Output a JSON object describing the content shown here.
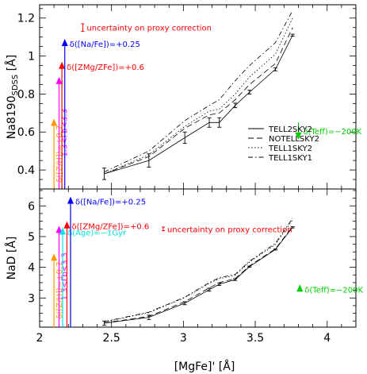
{
  "figure": {
    "xlabel": "[MgFe]' [Å]",
    "legend": [
      {
        "label": "TELL2SKY2",
        "dash": ""
      },
      {
        "label": "NOTELLSKY2",
        "dash": "7,4"
      },
      {
        "label": "TELL1SKY2",
        "dash": "1.5,2.5"
      },
      {
        "label": "TELL1SKY1",
        "dash": "6,3,1.5,3"
      }
    ]
  },
  "chart_data": [
    {
      "type": "line",
      "ylabel_main": "Na8190",
      "ylabel_sub": "SDSS",
      "ylabel_unit": "[Å]",
      "xlim": [
        2.0,
        4.2
      ],
      "ylim": [
        0.3,
        1.27
      ],
      "xticks": [
        2,
        2.5,
        3,
        3.5,
        4
      ],
      "yticks": [
        0.4,
        0.6,
        0.8,
        1.0,
        1.2
      ],
      "yticklabels": [
        "0.4",
        "0.6",
        "0.8",
        "1",
        "1.2"
      ],
      "series": [
        {
          "name": "TELL2SKY2",
          "x": [
            2.45,
            2.76,
            3.01,
            3.18,
            3.25,
            3.36,
            3.46,
            3.64,
            3.76
          ],
          "y": [
            0.38,
            0.45,
            0.57,
            0.65,
            0.65,
            0.74,
            0.81,
            0.93,
            1.11
          ]
        },
        {
          "name": "NOTELLSKY2",
          "x": [
            2.45,
            2.76,
            3.01,
            3.18,
            3.25,
            3.36,
            3.46,
            3.64,
            3.76
          ],
          "y": [
            0.38,
            0.47,
            0.62,
            0.69,
            0.7,
            0.77,
            0.85,
            0.96,
            1.15
          ]
        },
        {
          "name": "TELL1SKY2",
          "x": [
            2.45,
            2.76,
            3.01,
            3.18,
            3.25,
            3.36,
            3.46,
            3.64,
            3.76
          ],
          "y": [
            0.38,
            0.48,
            0.63,
            0.71,
            0.72,
            0.8,
            0.89,
            1.01,
            1.2
          ]
        },
        {
          "name": "TELL1SKY1",
          "x": [
            2.45,
            2.76,
            3.01,
            3.18,
            3.25,
            3.36,
            3.46,
            3.64,
            3.76
          ],
          "y": [
            0.39,
            0.5,
            0.66,
            0.74,
            0.77,
            0.87,
            0.95,
            1.07,
            1.24
          ]
        }
      ],
      "error_bars": [
        {
          "x": 2.45,
          "y": 0.38,
          "err": 0.03
        },
        {
          "x": 2.76,
          "y": 0.45,
          "err": 0.035
        },
        {
          "x": 3.01,
          "y": 0.57,
          "err": 0.03
        },
        {
          "x": 3.18,
          "y": 0.65,
          "err": 0.025
        },
        {
          "x": 3.25,
          "y": 0.65,
          "err": 0.025
        },
        {
          "x": 3.36,
          "y": 0.74,
          "err": 0.012
        },
        {
          "x": 3.46,
          "y": 0.81,
          "err": 0.01
        },
        {
          "x": 3.64,
          "y": 0.93,
          "err": 0.008
        },
        {
          "x": 3.76,
          "y": 1.11,
          "err": 0.005
        }
      ],
      "uncertainty": {
        "label": "uncertainty on proxy correction",
        "x": 2.3,
        "y": 1.15,
        "err": 0.02,
        "color": "#ff0000"
      },
      "arrows": [
        {
          "label": "δ([Z/H])=+0.7",
          "x": 2.1,
          "y0": 0.3,
          "y1": 0.67,
          "color": "#ff9900",
          "orient": "vertical"
        },
        {
          "label": "1.3<Γb<3.3",
          "x": 2.135,
          "y0": 0.3,
          "y1": 0.89,
          "color": "#ff00ff",
          "orient": "vertical"
        },
        {
          "label": "δ([ZMg/ZFe])=+0.6",
          "x": 2.155,
          "y0": 0.3,
          "y1": 0.97,
          "color": "#ff0000",
          "orient": "horizontal-label"
        },
        {
          "label": "δ([Na/Fe])=+0.25",
          "x": 2.175,
          "y0": 0.3,
          "y1": 1.09,
          "color": "#0000ff",
          "orient": "horizontal-label"
        },
        {
          "label": "δ(Teff)=−200K",
          "x": 3.8,
          "y0": 0.65,
          "y1": 0.56,
          "color": "#00cc00",
          "orient": "horizontal-label"
        }
      ]
    },
    {
      "type": "line",
      "ylabel_main": "NaD",
      "ylabel_sub": "",
      "ylabel_unit": "[Å]",
      "xlim": [
        2.0,
        4.2
      ],
      "ylim": [
        2.05,
        6.55
      ],
      "xticks": [
        2,
        2.5,
        3,
        3.5,
        4
      ],
      "xticklabels": [
        "2",
        "2.5",
        "3",
        "3.5",
        "4"
      ],
      "yticks": [
        3,
        4,
        5,
        6
      ],
      "yticklabels": [
        "3",
        "4",
        "5",
        "6"
      ],
      "series": [
        {
          "name": "TELL2SKY2",
          "x": [
            2.45,
            2.76,
            3.01,
            3.18,
            3.25,
            3.36,
            3.46,
            3.64,
            3.76
          ],
          "y": [
            2.18,
            2.37,
            2.83,
            3.27,
            3.45,
            3.6,
            4.02,
            4.58,
            5.3
          ]
        },
        {
          "name": "NOTELLSKY2",
          "x": [
            2.45,
            2.76,
            3.01,
            3.18,
            3.25,
            3.36,
            3.46,
            3.64,
            3.76
          ],
          "y": [
            2.19,
            2.4,
            2.88,
            3.33,
            3.5,
            3.63,
            4.05,
            4.6,
            5.33
          ]
        },
        {
          "name": "TELL1SKY2",
          "x": [
            2.45,
            2.76,
            3.01,
            3.18,
            3.25,
            3.36,
            3.46,
            3.64,
            3.76
          ],
          "y": [
            2.22,
            2.52,
            3.01,
            3.47,
            3.63,
            3.74,
            4.17,
            4.74,
            5.55
          ]
        },
        {
          "name": "TELL1SKY1",
          "x": [
            2.45,
            2.76,
            3.01,
            3.18,
            3.25,
            3.36,
            3.46,
            3.64,
            3.76
          ],
          "y": [
            2.23,
            2.54,
            3.03,
            3.5,
            3.66,
            3.77,
            4.2,
            4.78,
            5.6
          ]
        }
      ],
      "error_bars": [
        {
          "x": 2.45,
          "y": 2.18,
          "err": 0.07
        },
        {
          "x": 2.76,
          "y": 2.37,
          "err": 0.07
        },
        {
          "x": 3.01,
          "y": 2.83,
          "err": 0.05
        },
        {
          "x": 3.18,
          "y": 3.27,
          "err": 0.05
        },
        {
          "x": 3.25,
          "y": 3.45,
          "err": 0.04
        },
        {
          "x": 3.36,
          "y": 3.6,
          "err": 0.03
        },
        {
          "x": 3.46,
          "y": 4.02,
          "err": 0.02
        },
        {
          "x": 3.64,
          "y": 4.58,
          "err": 0.02
        },
        {
          "x": 3.76,
          "y": 5.3,
          "err": 0.02
        }
      ],
      "uncertainty": {
        "label": "uncertainty on proxy correction",
        "x": 2.86,
        "y": 5.25,
        "err": 0.06,
        "color": "#ff0000"
      },
      "arrows": [
        {
          "label": "δ([Z/H])=+0.7",
          "x": 2.1,
          "y0": 2.05,
          "y1": 4.45,
          "color": "#ff9900",
          "orient": "vertical"
        },
        {
          "label": "1.3<Γb<3.3",
          "x": 2.135,
          "y0": 2.05,
          "y1": 5.35,
          "color": "#ff00ff",
          "orient": "vertical"
        },
        {
          "label": "δ(Age)=−1Gyr",
          "x": 2.16,
          "y0": 2.05,
          "y1": 5.3,
          "color": "#00e5e5",
          "orient": "horizontal-label"
        },
        {
          "label": "δ([ZMg/ZFe])=+0.6",
          "x": 2.19,
          "y0": 2.05,
          "y1": 5.5,
          "color": "#ff0000",
          "orient": "horizontal-label"
        },
        {
          "label": "δ([Na/Fe])=+0.25",
          "x": 2.215,
          "y0": 2.05,
          "y1": 6.3,
          "color": "#0000ff",
          "orient": "horizontal-label"
        },
        {
          "label": "δ(Teff)=−200K",
          "x": 3.81,
          "y0": 3.28,
          "y1": 3.44,
          "color": "#00cc00",
          "orient": "horizontal-label"
        }
      ]
    }
  ]
}
